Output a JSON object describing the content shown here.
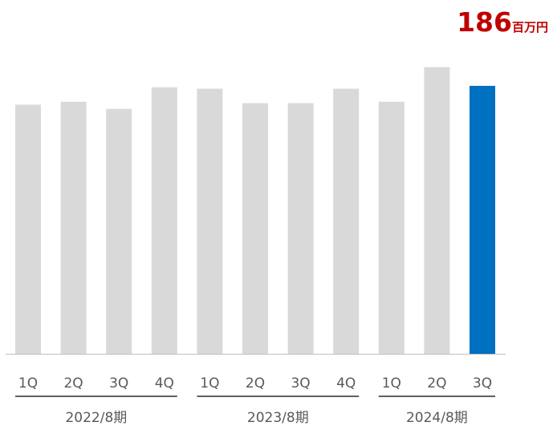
{
  "chart_data": {
    "type": "bar",
    "categories": [
      "1Q",
      "2Q",
      "3Q",
      "4Q",
      "1Q",
      "2Q",
      "3Q",
      "4Q",
      "1Q",
      "2Q",
      "3Q"
    ],
    "groups": [
      {
        "label": "2022/8期",
        "start": 0,
        "end": 3
      },
      {
        "label": "2023/8期",
        "start": 4,
        "end": 7
      },
      {
        "label": "2024/8期",
        "start": 8,
        "end": 10
      }
    ],
    "values": [
      173,
      175,
      170,
      185,
      184,
      174,
      174,
      184,
      175,
      199,
      186
    ],
    "highlight_index": 10,
    "callout": {
      "value": "186",
      "unit": "百万円"
    },
    "ylim": [
      0,
      230
    ],
    "grid": false,
    "legend": "none"
  },
  "colors": {
    "bar": "#d9d9d9",
    "highlight": "#0070c0",
    "callout": "#c00000",
    "text": "#595959",
    "axis": "#bfbfbf",
    "group_line": "#000000"
  }
}
